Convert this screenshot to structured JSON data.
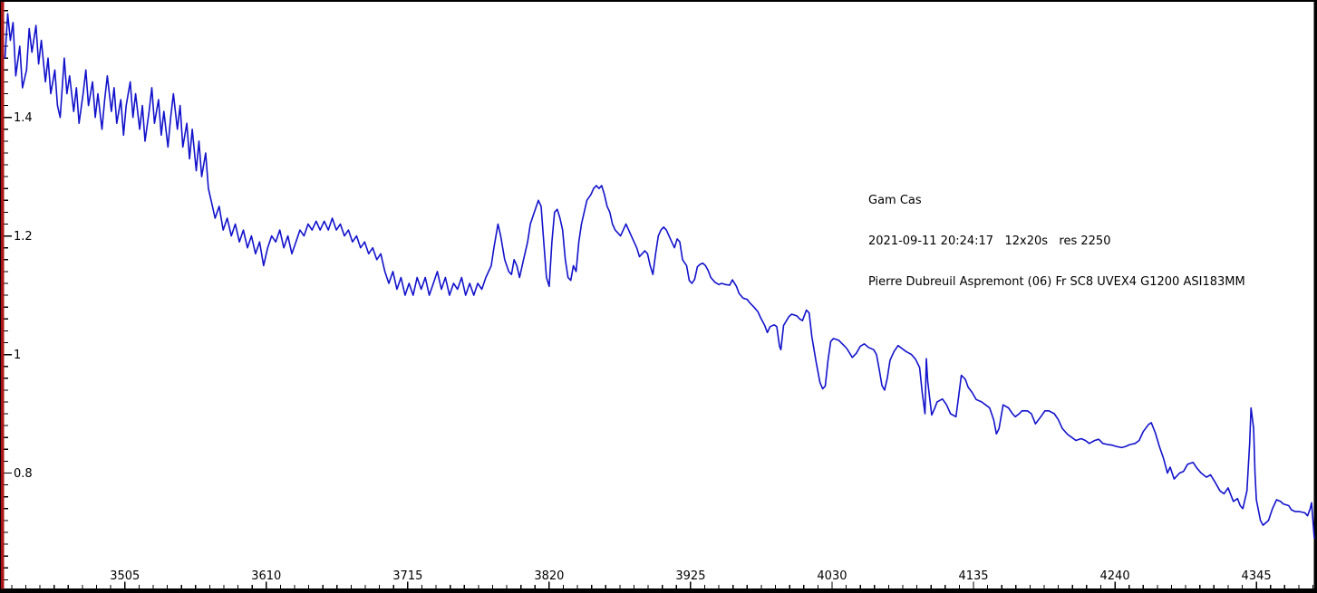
{
  "annotation": {
    "target": "Gam Cas",
    "observation": "2021-09-11 20:24:17   12x20s   res 2250",
    "observer": "Pierre Dubreuil Aspremont (06) Fr SC8 UVEX4 G1200 ASI183MM"
  },
  "chart_data": {
    "type": "line",
    "title": "Gam Cas",
    "xlabel": "",
    "ylabel": "",
    "grid": false,
    "legend": "none",
    "line_color": "#1212cc",
    "y_axis_color": "#a81616",
    "x_axis_color": "#000000",
    "frame_color": "#000000",
    "background": "#ffffff",
    "xlim": [
      3415,
      4388
    ],
    "ylim": [
      0.603,
      1.595
    ],
    "x_major_ticks": [
      3505,
      3610,
      3715,
      3820,
      3925,
      4030,
      4135,
      4240,
      4345
    ],
    "x_tick_labels": [
      "3505",
      "3610",
      "3715",
      "3820",
      "3925",
      "4030",
      "4135",
      "4240",
      "4345"
    ],
    "x_minor_step": 10.5,
    "y_major_ticks": [
      0.8,
      1.0,
      1.2,
      1.4
    ],
    "y_tick_labels": [
      "0.8",
      "1",
      "1.2",
      "1.4"
    ],
    "y_minor_step": 0.02,
    "points": [
      [
        3416,
        1.5
      ],
      [
        3418,
        1.575
      ],
      [
        3420,
        1.53
      ],
      [
        3422,
        1.56
      ],
      [
        3424,
        1.47
      ],
      [
        3427,
        1.52
      ],
      [
        3429,
        1.45
      ],
      [
        3432,
        1.48
      ],
      [
        3434,
        1.55
      ],
      [
        3436,
        1.51
      ],
      [
        3439,
        1.555
      ],
      [
        3441,
        1.49
      ],
      [
        3443,
        1.53
      ],
      [
        3446,
        1.46
      ],
      [
        3448,
        1.5
      ],
      [
        3450,
        1.44
      ],
      [
        3453,
        1.48
      ],
      [
        3455,
        1.42
      ],
      [
        3457,
        1.4
      ],
      [
        3460,
        1.5
      ],
      [
        3462,
        1.44
      ],
      [
        3464,
        1.47
      ],
      [
        3467,
        1.41
      ],
      [
        3469,
        1.45
      ],
      [
        3471,
        1.39
      ],
      [
        3474,
        1.44
      ],
      [
        3476,
        1.48
      ],
      [
        3478,
        1.42
      ],
      [
        3481,
        1.46
      ],
      [
        3483,
        1.4
      ],
      [
        3485,
        1.44
      ],
      [
        3488,
        1.38
      ],
      [
        3490,
        1.43
      ],
      [
        3492,
        1.47
      ],
      [
        3495,
        1.41
      ],
      [
        3497,
        1.45
      ],
      [
        3499,
        1.39
      ],
      [
        3502,
        1.43
      ],
      [
        3504,
        1.37
      ],
      [
        3506,
        1.42
      ],
      [
        3509,
        1.46
      ],
      [
        3511,
        1.4
      ],
      [
        3513,
        1.44
      ],
      [
        3516,
        1.38
      ],
      [
        3518,
        1.42
      ],
      [
        3520,
        1.36
      ],
      [
        3523,
        1.41
      ],
      [
        3525,
        1.45
      ],
      [
        3527,
        1.39
      ],
      [
        3530,
        1.43
      ],
      [
        3532,
        1.37
      ],
      [
        3534,
        1.41
      ],
      [
        3537,
        1.35
      ],
      [
        3539,
        1.4
      ],
      [
        3541,
        1.44
      ],
      [
        3544,
        1.38
      ],
      [
        3546,
        1.42
      ],
      [
        3548,
        1.35
      ],
      [
        3551,
        1.39
      ],
      [
        3553,
        1.33
      ],
      [
        3555,
        1.38
      ],
      [
        3558,
        1.31
      ],
      [
        3560,
        1.36
      ],
      [
        3562,
        1.3
      ],
      [
        3565,
        1.34
      ],
      [
        3567,
        1.28
      ],
      [
        3569,
        1.26
      ],
      [
        3572,
        1.23
      ],
      [
        3575,
        1.25
      ],
      [
        3578,
        1.21
      ],
      [
        3581,
        1.23
      ],
      [
        3584,
        1.2
      ],
      [
        3587,
        1.22
      ],
      [
        3590,
        1.19
      ],
      [
        3593,
        1.21
      ],
      [
        3596,
        1.18
      ],
      [
        3599,
        1.2
      ],
      [
        3602,
        1.17
      ],
      [
        3605,
        1.19
      ],
      [
        3608,
        1.15
      ],
      [
        3611,
        1.18
      ],
      [
        3614,
        1.2
      ],
      [
        3617,
        1.19
      ],
      [
        3620,
        1.21
      ],
      [
        3623,
        1.18
      ],
      [
        3626,
        1.2
      ],
      [
        3629,
        1.17
      ],
      [
        3632,
        1.19
      ],
      [
        3635,
        1.21
      ],
      [
        3638,
        1.2
      ],
      [
        3641,
        1.22
      ],
      [
        3644,
        1.21
      ],
      [
        3647,
        1.225
      ],
      [
        3650,
        1.21
      ],
      [
        3653,
        1.225
      ],
      [
        3656,
        1.21
      ],
      [
        3659,
        1.23
      ],
      [
        3662,
        1.21
      ],
      [
        3665,
        1.22
      ],
      [
        3668,
        1.2
      ],
      [
        3671,
        1.21
      ],
      [
        3674,
        1.19
      ],
      [
        3677,
        1.2
      ],
      [
        3680,
        1.18
      ],
      [
        3683,
        1.19
      ],
      [
        3686,
        1.17
      ],
      [
        3689,
        1.18
      ],
      [
        3692,
        1.16
      ],
      [
        3695,
        1.17
      ],
      [
        3698,
        1.14
      ],
      [
        3701,
        1.12
      ],
      [
        3704,
        1.14
      ],
      [
        3707,
        1.11
      ],
      [
        3710,
        1.13
      ],
      [
        3713,
        1.1
      ],
      [
        3716,
        1.12
      ],
      [
        3719,
        1.1
      ],
      [
        3722,
        1.13
      ],
      [
        3725,
        1.11
      ],
      [
        3728,
        1.13
      ],
      [
        3731,
        1.1
      ],
      [
        3734,
        1.12
      ],
      [
        3737,
        1.14
      ],
      [
        3740,
        1.11
      ],
      [
        3743,
        1.13
      ],
      [
        3746,
        1.1
      ],
      [
        3749,
        1.12
      ],
      [
        3752,
        1.11
      ],
      [
        3755,
        1.13
      ],
      [
        3758,
        1.1
      ],
      [
        3761,
        1.12
      ],
      [
        3764,
        1.1
      ],
      [
        3767,
        1.12
      ],
      [
        3770,
        1.11
      ],
      [
        3773,
        1.13
      ],
      [
        3777,
        1.15
      ],
      [
        3779,
        1.18
      ],
      [
        3782,
        1.22
      ],
      [
        3784,
        1.2
      ],
      [
        3787,
        1.16
      ],
      [
        3790,
        1.14
      ],
      [
        3792,
        1.135
      ],
      [
        3794,
        1.16
      ],
      [
        3796,
        1.15
      ],
      [
        3798,
        1.13
      ],
      [
        3801,
        1.16
      ],
      [
        3804,
        1.19
      ],
      [
        3806,
        1.22
      ],
      [
        3809,
        1.24
      ],
      [
        3812,
        1.26
      ],
      [
        3814,
        1.25
      ],
      [
        3816,
        1.19
      ],
      [
        3818,
        1.13
      ],
      [
        3820,
        1.115
      ],
      [
        3822,
        1.19
      ],
      [
        3824,
        1.24
      ],
      [
        3826,
        1.245
      ],
      [
        3828,
        1.23
      ],
      [
        3830,
        1.21
      ],
      [
        3832,
        1.16
      ],
      [
        3834,
        1.13
      ],
      [
        3836,
        1.125
      ],
      [
        3838,
        1.15
      ],
      [
        3840,
        1.14
      ],
      [
        3842,
        1.19
      ],
      [
        3844,
        1.22
      ],
      [
        3846,
        1.24
      ],
      [
        3848,
        1.26
      ],
      [
        3851,
        1.27
      ],
      [
        3853,
        1.28
      ],
      [
        3855,
        1.285
      ],
      [
        3857,
        1.28
      ],
      [
        3859,
        1.285
      ],
      [
        3861,
        1.27
      ],
      [
        3863,
        1.25
      ],
      [
        3865,
        1.24
      ],
      [
        3867,
        1.22
      ],
      [
        3869,
        1.21
      ],
      [
        3871,
        1.205
      ],
      [
        3873,
        1.2
      ],
      [
        3875,
        1.21
      ],
      [
        3877,
        1.22
      ],
      [
        3879,
        1.21
      ],
      [
        3881,
        1.2
      ],
      [
        3883,
        1.19
      ],
      [
        3885,
        1.18
      ],
      [
        3887,
        1.165
      ],
      [
        3889,
        1.17
      ],
      [
        3891,
        1.175
      ],
      [
        3893,
        1.17
      ],
      [
        3895,
        1.15
      ],
      [
        3897,
        1.135
      ],
      [
        3899,
        1.17
      ],
      [
        3901,
        1.2
      ],
      [
        3903,
        1.21
      ],
      [
        3905,
        1.215
      ],
      [
        3907,
        1.21
      ],
      [
        3909,
        1.2
      ],
      [
        3911,
        1.19
      ],
      [
        3913,
        1.18
      ],
      [
        3915,
        1.195
      ],
      [
        3917,
        1.19
      ],
      [
        3919,
        1.16
      ],
      [
        3922,
        1.15
      ],
      [
        3924,
        1.125
      ],
      [
        3926,
        1.12
      ],
      [
        3928,
        1.127
      ],
      [
        3930,
        1.148
      ],
      [
        3932,
        1.152
      ],
      [
        3934,
        1.154
      ],
      [
        3936,
        1.15
      ],
      [
        3938,
        1.142
      ],
      [
        3940,
        1.13
      ],
      [
        3943,
        1.122
      ],
      [
        3946,
        1.118
      ],
      [
        3948,
        1.12
      ],
      [
        3951,
        1.118
      ],
      [
        3954,
        1.117
      ],
      [
        3956,
        1.126
      ],
      [
        3959,
        1.115
      ],
      [
        3961,
        1.103
      ],
      [
        3964,
        1.095
      ],
      [
        3967,
        1.093
      ],
      [
        3969,
        1.087
      ],
      [
        3972,
        1.08
      ],
      [
        3975,
        1.072
      ],
      [
        3977,
        1.062
      ],
      [
        3980,
        1.049
      ],
      [
        3982,
        1.037
      ],
      [
        3984,
        1.047
      ],
      [
        3987,
        1.05
      ],
      [
        3989,
        1.047
      ],
      [
        3991,
        1.014
      ],
      [
        3992,
        1.008
      ],
      [
        3994,
        1.049
      ],
      [
        3998,
        1.064
      ],
      [
        4000,
        1.068
      ],
      [
        4004,
        1.065
      ],
      [
        4006,
        1.06
      ],
      [
        4008,
        1.057
      ],
      [
        4011,
        1.075
      ],
      [
        4013,
        1.07
      ],
      [
        4015,
        1.03
      ],
      [
        4018,
        0.99
      ],
      [
        4021,
        0.953
      ],
      [
        4023,
        0.942
      ],
      [
        4025,
        0.947
      ],
      [
        4027,
        0.99
      ],
      [
        4029,
        1.022
      ],
      [
        4031,
        1.027
      ],
      [
        4035,
        1.024
      ],
      [
        4038,
        1.017
      ],
      [
        4041,
        1.01
      ],
      [
        4045,
        0.995
      ],
      [
        4048,
        1.002
      ],
      [
        4051,
        1.014
      ],
      [
        4054,
        1.018
      ],
      [
        4057,
        1.012
      ],
      [
        4061,
        1.008
      ],
      [
        4063,
        1.0
      ],
      [
        4065,
        0.975
      ],
      [
        4067,
        0.948
      ],
      [
        4069,
        0.94
      ],
      [
        4071,
        0.96
      ],
      [
        4073,
        0.99
      ],
      [
        4076,
        1.005
      ],
      [
        4079,
        1.015
      ],
      [
        4082,
        1.01
      ],
      [
        4085,
        1.005
      ],
      [
        4089,
        1.0
      ],
      [
        4092,
        0.992
      ],
      [
        4095,
        0.978
      ],
      [
        4097,
        0.935
      ],
      [
        4099,
        0.9
      ],
      [
        4100,
        0.993
      ],
      [
        4101,
        0.955
      ],
      [
        4104,
        0.898
      ],
      [
        4106,
        0.908
      ],
      [
        4108,
        0.92
      ],
      [
        4112,
        0.925
      ],
      [
        4115,
        0.915
      ],
      [
        4118,
        0.9
      ],
      [
        4122,
        0.895
      ],
      [
        4124,
        0.93
      ],
      [
        4126,
        0.965
      ],
      [
        4129,
        0.958
      ],
      [
        4131,
        0.945
      ],
      [
        4134,
        0.936
      ],
      [
        4137,
        0.924
      ],
      [
        4141,
        0.92
      ],
      [
        4144,
        0.915
      ],
      [
        4147,
        0.91
      ],
      [
        4150,
        0.89
      ],
      [
        4152,
        0.866
      ],
      [
        4154,
        0.875
      ],
      [
        4157,
        0.915
      ],
      [
        4161,
        0.91
      ],
      [
        4164,
        0.9
      ],
      [
        4166,
        0.895
      ],
      [
        4169,
        0.9
      ],
      [
        4171,
        0.905
      ],
      [
        4175,
        0.905
      ],
      [
        4178,
        0.9
      ],
      [
        4181,
        0.883
      ],
      [
        4185,
        0.895
      ],
      [
        4188,
        0.905
      ],
      [
        4191,
        0.905
      ],
      [
        4195,
        0.9
      ],
      [
        4198,
        0.89
      ],
      [
        4201,
        0.875
      ],
      [
        4205,
        0.865
      ],
      [
        4208,
        0.86
      ],
      [
        4211,
        0.855
      ],
      [
        4215,
        0.858
      ],
      [
        4218,
        0.855
      ],
      [
        4221,
        0.85
      ],
      [
        4225,
        0.855
      ],
      [
        4228,
        0.857
      ],
      [
        4231,
        0.85
      ],
      [
        4235,
        0.848
      ],
      [
        4238,
        0.847
      ],
      [
        4241,
        0.845
      ],
      [
        4245,
        0.843
      ],
      [
        4248,
        0.845
      ],
      [
        4251,
        0.848
      ],
      [
        4255,
        0.85
      ],
      [
        4258,
        0.855
      ],
      [
        4261,
        0.87
      ],
      [
        4265,
        0.882
      ],
      [
        4267,
        0.885
      ],
      [
        4270,
        0.868
      ],
      [
        4273,
        0.845
      ],
      [
        4276,
        0.825
      ],
      [
        4279,
        0.8
      ],
      [
        4281,
        0.81
      ],
      [
        4284,
        0.79
      ],
      [
        4288,
        0.8
      ],
      [
        4291,
        0.803
      ],
      [
        4294,
        0.815
      ],
      [
        4298,
        0.818
      ],
      [
        4301,
        0.808
      ],
      [
        4304,
        0.8
      ],
      [
        4308,
        0.793
      ],
      [
        4311,
        0.797
      ],
      [
        4314,
        0.786
      ],
      [
        4318,
        0.77
      ],
      [
        4321,
        0.765
      ],
      [
        4324,
        0.775
      ],
      [
        4328,
        0.752
      ],
      [
        4331,
        0.757
      ],
      [
        4333,
        0.745
      ],
      [
        4335,
        0.74
      ],
      [
        4338,
        0.77
      ],
      [
        4340,
        0.85
      ],
      [
        4341,
        0.91
      ],
      [
        4343,
        0.875
      ],
      [
        4344,
        0.8
      ],
      [
        4345,
        0.755
      ],
      [
        4348,
        0.72
      ],
      [
        4350,
        0.712
      ],
      [
        4354,
        0.72
      ],
      [
        4357,
        0.74
      ],
      [
        4360,
        0.755
      ],
      [
        4363,
        0.752
      ],
      [
        4365,
        0.748
      ],
      [
        4369,
        0.745
      ],
      [
        4371,
        0.738
      ],
      [
        4374,
        0.735
      ],
      [
        4377,
        0.735
      ],
      [
        4381,
        0.733
      ],
      [
        4383,
        0.728
      ],
      [
        4385,
        0.74
      ],
      [
        4386,
        0.75
      ],
      [
        4388,
        0.69
      ]
    ]
  }
}
